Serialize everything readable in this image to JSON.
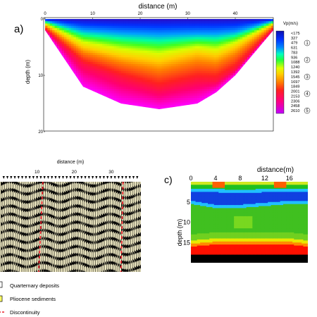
{
  "colors": {
    "scale": [
      "#a000ff",
      "#ff00ff",
      "#ff0060",
      "#ff0000",
      "#ff6000",
      "#ff9900",
      "#ffd000",
      "#ffff00",
      "#c8ff00",
      "#00ff40",
      "#00ffa0",
      "#00a0ff",
      "#0050ff",
      "#0000ff",
      "#1a1aa0"
    ],
    "seismic_bg": "#f5efc8",
    "discontinuity": "#e8202a",
    "pliocene": "#ffff66"
  },
  "panel_a": {
    "label": "a)",
    "title": "distance (m)",
    "ylabel": "depth (m)",
    "colorbar_title": "Vp(m/s)",
    "colorbar_ticks": [
      "<175",
      "327",
      "479",
      "631",
      "783",
      "936",
      "1088",
      "1240",
      "1392",
      "1545",
      "1697",
      "1849",
      "2001",
      "2153",
      "2306",
      "2458",
      "2610"
    ],
    "layer_markers": [
      "1",
      "2",
      "3",
      "4",
      "5"
    ]
  },
  "panel_b": {
    "title": "distance (m)",
    "legend": [
      {
        "label": "Quarternary deposits",
        "swatch": "white"
      },
      {
        "label": "Pliocene sediments",
        "swatch": "yellow"
      },
      {
        "label": "Discontinuity",
        "swatch": "dashed-red"
      }
    ]
  },
  "panel_c": {
    "label": "c)",
    "title": "distance(m)",
    "ylabel": "depth (m)"
  },
  "chart_data": [
    {
      "type": "heatmap",
      "title": "distance (m)",
      "ylabel": "depth (m)",
      "x_ticks": [
        "0",
        "10",
        "20",
        "30",
        "40"
      ],
      "y_ticks": [
        "0",
        "10",
        "20"
      ],
      "xlim": [
        0,
        48
      ],
      "ylim": [
        0,
        20
      ],
      "colorbar": {
        "title": "Vp(m/s)",
        "min": 175,
        "max": 2610
      },
      "velocity_isoline_depths_m": {
        "x": [
          0,
          8,
          16,
          24,
          32,
          36,
          40,
          48
        ],
        "v479": [
          0.3,
          2.0,
          2.5,
          2.8,
          2.6,
          2.6,
          2.3,
          0.3
        ],
        "v1088": [
          1.0,
          5.0,
          6.5,
          7.5,
          6.0,
          6.5,
          5.0,
          1.0
        ],
        "v1697": [
          1.8,
          8.0,
          10.5,
          12.5,
          11.0,
          11.0,
          9.0,
          1.8
        ],
        "bottom": [
          2.0,
          12.0,
          15.0,
          16.0,
          15.0,
          13.0,
          10.0,
          2.0
        ]
      }
    },
    {
      "type": "heatmap",
      "title": "distance (m)",
      "x_ticks": [
        "10",
        "20",
        "30"
      ],
      "xlim": [
        0,
        38
      ],
      "discontinuities_x_m": [
        11,
        33
      ]
    },
    {
      "type": "heatmap",
      "title": "distance(m)",
      "ylabel": "depth (m)",
      "x_ticks": [
        "0",
        "4",
        "8",
        "12",
        "16"
      ],
      "y_ticks": [
        "5",
        "10",
        "15"
      ],
      "xlim": [
        0,
        19
      ],
      "ylim": [
        0,
        20
      ],
      "layer_depths_m": {
        "x": [
          0,
          4,
          8,
          12,
          16,
          19
        ],
        "blue_layer_top": [
          2.6,
          2.6,
          2.8,
          2.6,
          2.5,
          2.5
        ],
        "blue_layer_bottom": [
          5.5,
          6.5,
          6.5,
          6.0,
          5.5,
          5.5
        ],
        "red_layer_top": [
          16.0,
          15.5,
          15.5,
          15.5,
          15.5,
          16.0
        ],
        "black_layer_top": [
          18.0,
          18.0,
          18.0,
          18.0,
          18.0,
          18.0
        ]
      }
    }
  ]
}
